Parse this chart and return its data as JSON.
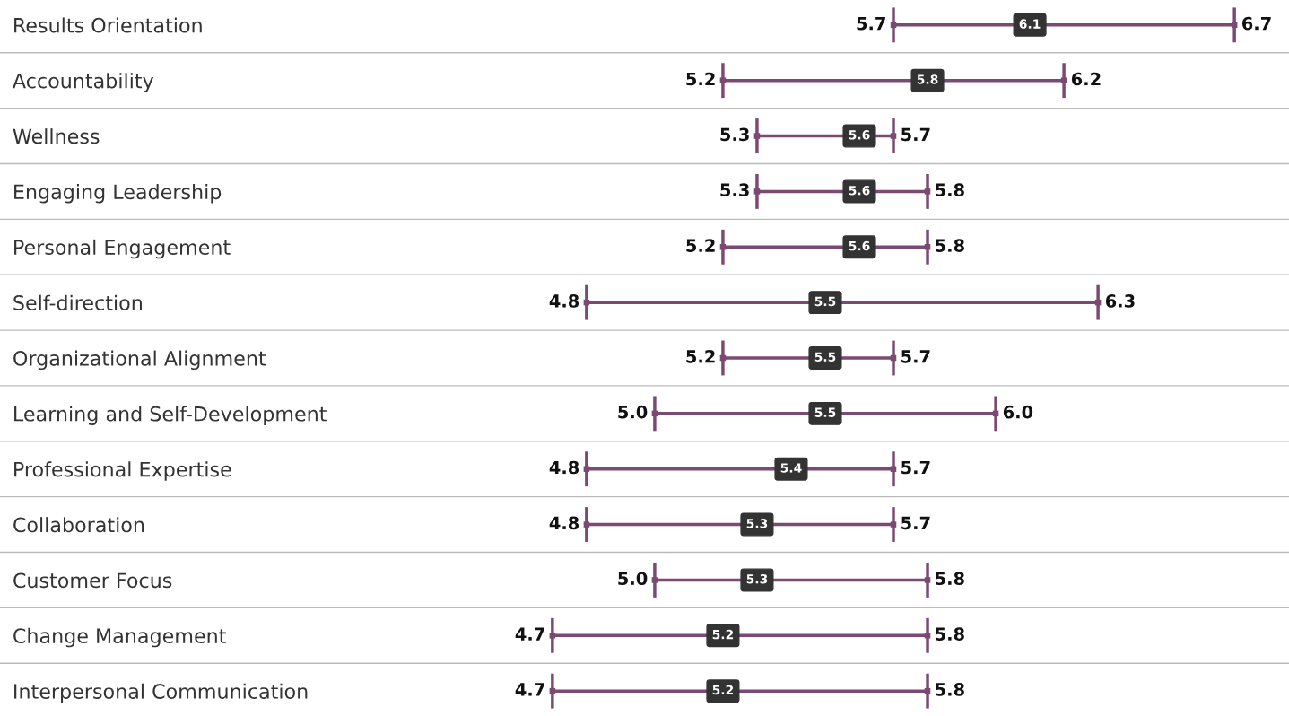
{
  "chart_data": {
    "type": "scatter",
    "orientation": "horizontal",
    "categories": [
      "Results Orientation",
      "Accountability",
      "Wellness",
      "Engaging Leadership",
      "Personal Engagement",
      "Self-direction",
      "Organizational Alignment",
      "Learning and Self-Development",
      "Professional Expertise",
      "Collaboration",
      "Customer Focus",
      "Change Management",
      "Interpersonal Communication"
    ],
    "series": [
      {
        "color": "#7b4a73",
        "values": [
          5.7,
          5.2,
          5.3,
          5.3,
          5.2,
          4.8,
          5.2,
          5.0,
          4.8,
          4.8,
          5.0,
          4.7,
          4.7
        ],
        "value_labels": [
          "5.7",
          "5.2",
          "5.3",
          "5.3",
          "5.2",
          "4.8",
          "5.2",
          "5.0",
          "4.8",
          "4.8",
          "5.0",
          "4.7",
          "4.7"
        ]
      },
      {
        "color": "#333333",
        "values": [
          6.1,
          5.8,
          5.6,
          5.6,
          5.6,
          5.5,
          5.5,
          5.5,
          5.4,
          5.3,
          5.3,
          5.2,
          5.2
        ],
        "value_labels": [
          "6.1",
          "5.8",
          "5.6",
          "5.6",
          "5.6",
          "5.5",
          "5.5",
          "5.5",
          "5.4",
          "5.3",
          "5.3",
          "5.2",
          "5.2"
        ]
      },
      {
        "color": "#7b4a73",
        "values": [
          6.7,
          6.2,
          5.7,
          5.8,
          5.8,
          6.3,
          5.7,
          6.0,
          5.7,
          5.7,
          5.8,
          5.8,
          5.8
        ],
        "value_labels": [
          "6.7",
          "6.2",
          "5.7",
          "5.8",
          "5.8",
          "6.3",
          "5.7",
          "6.0",
          "5.7",
          "5.7",
          "5.8",
          "5.8",
          "5.8"
        ]
      }
    ],
    "xlim": [
      3.08,
      6.86
    ],
    "tick_labels": "y",
    "data_labels": true,
    "grid": false
  }
}
